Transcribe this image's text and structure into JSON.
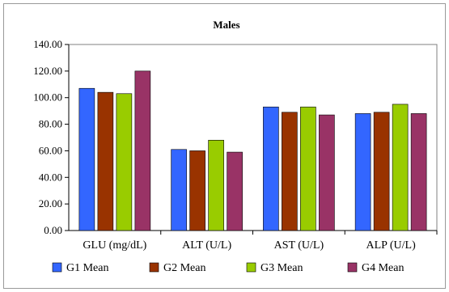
{
  "chart_data": {
    "type": "bar",
    "title": "Males",
    "xlabel": "",
    "ylabel": "",
    "ylim": [
      0,
      140
    ],
    "yticks": [
      "0.00",
      "20.00",
      "40.00",
      "60.00",
      "80.00",
      "100.00",
      "120.00",
      "140.00"
    ],
    "categories": [
      "GLU (mg/dL)",
      "ALT (U/L)",
      "AST (U/L)",
      "ALP  (U/L)"
    ],
    "series": [
      {
        "name": "G1 Mean",
        "color": "#3366ff",
        "values": [
          107,
          61,
          93,
          88
        ]
      },
      {
        "name": "G2 Mean",
        "color": "#993300",
        "values": [
          104,
          60,
          89,
          89
        ]
      },
      {
        "name": "G3 Mean",
        "color": "#99cc00",
        "values": [
          103,
          68,
          93,
          95
        ]
      },
      {
        "name": "G4 Mean",
        "color": "#993366",
        "values": [
          120,
          59,
          87,
          88
        ]
      }
    ],
    "grid": false,
    "legend": "bottom"
  }
}
